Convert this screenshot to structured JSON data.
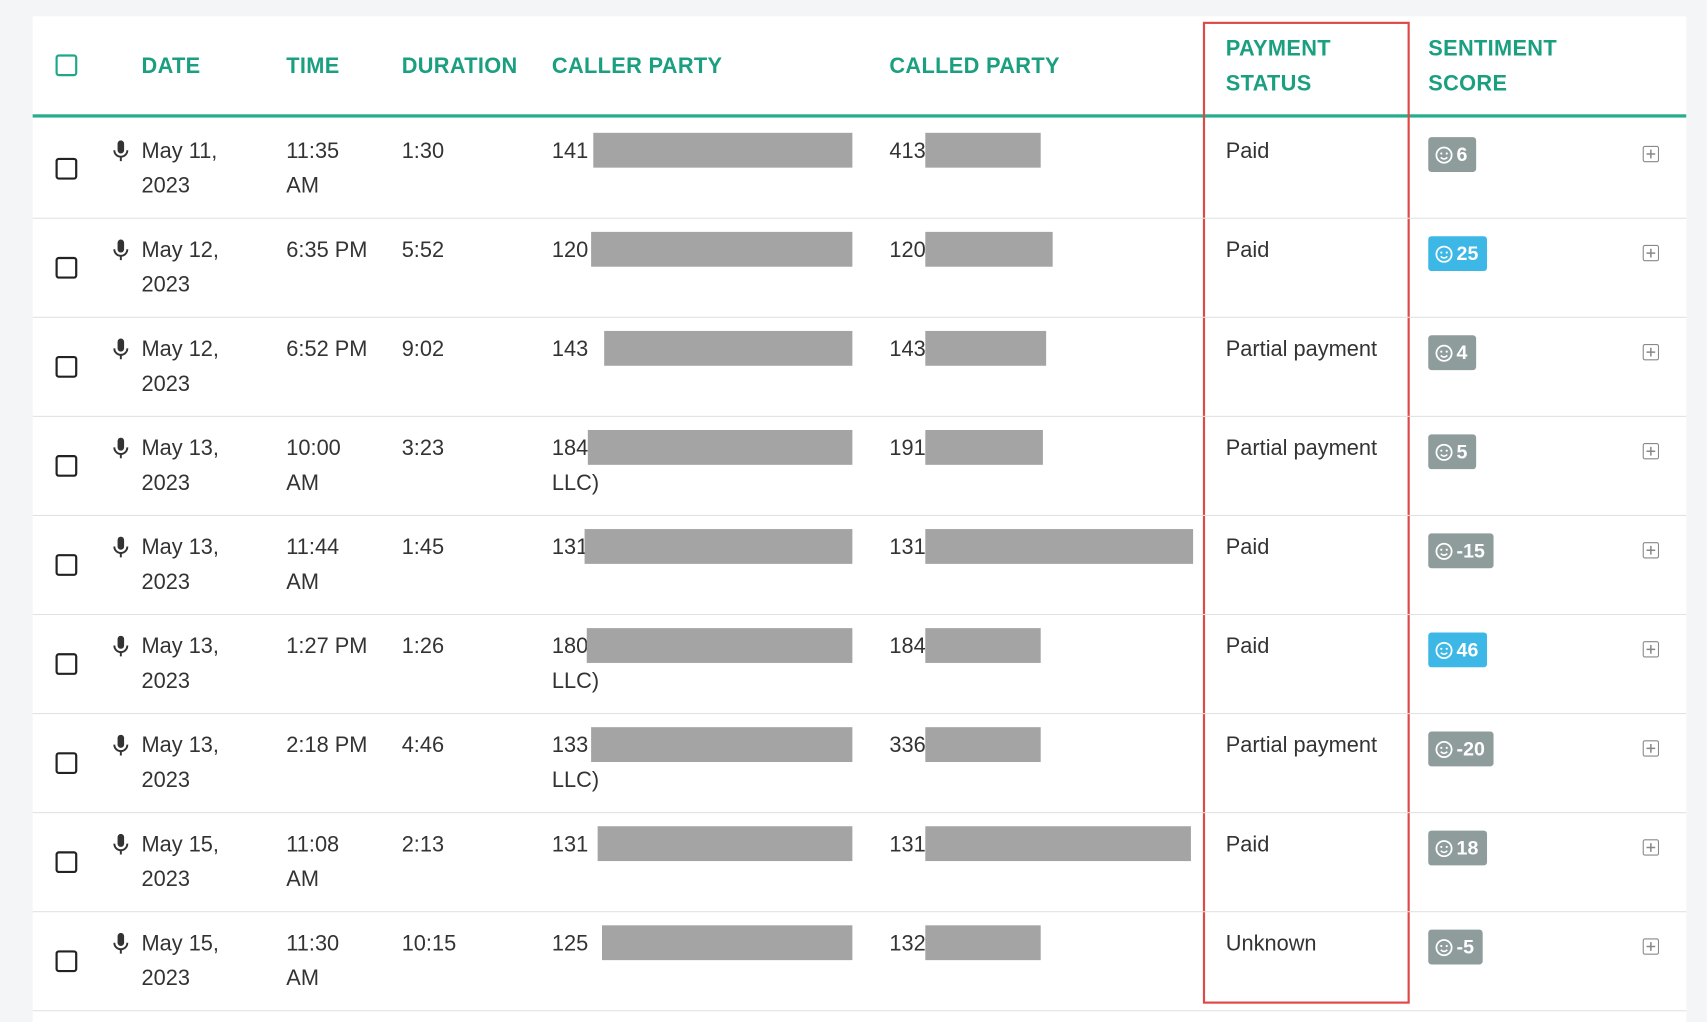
{
  "header": {
    "columns": [
      "DATE",
      "TIME",
      "DURATION",
      "CALLER PARTY",
      "CALLED PARTY",
      "PAYMENT STATUS",
      "SENTIMENT SCORE"
    ]
  },
  "rows": [
    {
      "date": "May 11, 2023",
      "time": "11:35 AM",
      "duration": "1:30",
      "caller": [
        "141"
      ],
      "called": "413",
      "payment": "Paid",
      "score": "6",
      "score_color": "#8e9c9c"
    },
    {
      "date": "May 12, 2023",
      "time": "6:35 PM",
      "duration": "5:52",
      "caller": [
        "120"
      ],
      "called": "120",
      "payment": "Paid",
      "score": "25",
      "score_color": "#3db8e6"
    },
    {
      "date": "May 12, 2023",
      "time": "6:52 PM",
      "duration": "9:02",
      "caller": [
        "143"
      ],
      "called": "143",
      "payment": "Partial payment",
      "score": "4",
      "score_color": "#8e9c9c"
    },
    {
      "date": "May 13, 2023",
      "time": "10:00 AM",
      "duration": "3:23",
      "caller": [
        "184",
        "LLC)"
      ],
      "called": "191",
      "payment": "Partial payment",
      "score": "5",
      "score_color": "#8e9c9c"
    },
    {
      "date": "May 13, 2023",
      "time": "11:44 AM",
      "duration": "1:45",
      "caller": [
        "131"
      ],
      "called": "131",
      "payment": "Paid",
      "score": "-15",
      "score_color": "#8e9c9c"
    },
    {
      "date": "May 13, 2023",
      "time": "1:27 PM",
      "duration": "1:26",
      "caller": [
        "180",
        "LLC)"
      ],
      "called": "184",
      "payment": "Paid",
      "score": "46",
      "score_color": "#3db8e6"
    },
    {
      "date": "May 13, 2023",
      "time": "2:18 PM",
      "duration": "4:46",
      "caller": [
        "133",
        "LLC)"
      ],
      "called": "336",
      "payment": "Partial payment",
      "score": "-20",
      "score_color": "#8e9c9c"
    },
    {
      "date": "May 15, 2023",
      "time": "11:08 AM",
      "duration": "2:13",
      "caller": [
        "131"
      ],
      "called": "131",
      "payment": "Paid",
      "score": "18",
      "score_color": "#8e9c9c"
    },
    {
      "date": "May 15, 2023",
      "time": "11:30 AM",
      "duration": "10:15",
      "caller": [
        "125"
      ],
      "called": "132",
      "payment": "Unknown",
      "score": "-5",
      "score_color": "#8e9c9c"
    }
  ]
}
